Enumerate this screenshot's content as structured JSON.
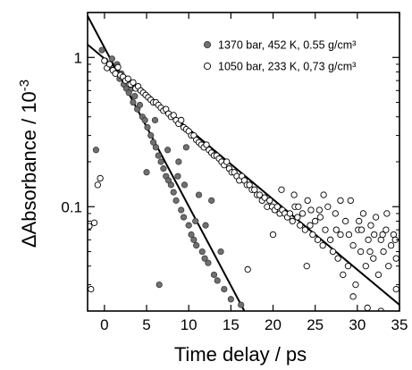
{
  "chart_data": {
    "type": "scatter",
    "xlabel": "Time delay / ps",
    "ylabel_prefix": "ΔAbsorbance / 10",
    "ylabel_exponent": "-3",
    "xlim": [
      -2,
      35
    ],
    "ylim": [
      0.02,
      2
    ],
    "yscale": "log",
    "xticks": [
      0,
      5,
      10,
      15,
      20,
      25,
      30,
      35
    ],
    "yticks": [
      {
        "value": 1,
        "label": "1"
      },
      {
        "value": 0.1,
        "label": "0.1"
      }
    ],
    "minor_yticks": [
      0.03,
      0.04,
      0.05,
      0.06,
      0.07,
      0.08,
      0.09,
      0.2,
      0.3,
      0.4,
      0.5,
      0.6,
      0.7,
      0.8,
      0.9
    ],
    "legend_position": "top-right",
    "series": [
      {
        "name": "1370 bar, 452 K, 0.55 g/cm³",
        "marker": "filled-circle",
        "color": "#707070",
        "points": [
          [
            -1.0,
            0.24
          ],
          [
            -0.3,
            1.12
          ],
          [
            0.1,
            0.95
          ],
          [
            0.5,
            0.86
          ],
          [
            0.9,
            0.98
          ],
          [
            1.2,
            0.8
          ],
          [
            1.5,
            0.9
          ],
          [
            1.8,
            0.72
          ],
          [
            2.0,
            0.78
          ],
          [
            2.3,
            0.66
          ],
          [
            2.6,
            0.62
          ],
          [
            2.9,
            0.58
          ],
          [
            3.2,
            0.62
          ],
          [
            3.4,
            0.5
          ],
          [
            3.6,
            0.55
          ],
          [
            3.9,
            0.45
          ],
          [
            4.2,
            0.48
          ],
          [
            4.5,
            0.4
          ],
          [
            4.8,
            0.38
          ],
          [
            5.1,
            0.34
          ],
          [
            5.5,
            0.3
          ],
          [
            5.8,
            0.27
          ],
          [
            6.1,
            0.25
          ],
          [
            6.4,
            0.22
          ],
          [
            6.7,
            0.2
          ],
          [
            7.0,
            0.18
          ],
          [
            7.3,
            0.16
          ],
          [
            7.6,
            0.15
          ],
          [
            7.9,
            0.14
          ],
          [
            8.2,
            0.125
          ],
          [
            8.5,
            0.11
          ],
          [
            8.8,
            0.2
          ],
          [
            9.1,
            0.095
          ],
          [
            9.4,
            0.085
          ],
          [
            9.7,
            0.25
          ],
          [
            10.0,
            0.075
          ],
          [
            10.3,
            0.065
          ],
          [
            10.6,
            0.06
          ],
          [
            10.9,
            0.055
          ],
          [
            11.2,
            0.12
          ],
          [
            11.6,
            0.05
          ],
          [
            11.9,
            0.045
          ],
          [
            12.3,
            0.042
          ],
          [
            12.7,
            0.11
          ],
          [
            13.0,
            0.035
          ],
          [
            13.4,
            0.032
          ],
          [
            13.8,
            0.05
          ],
          [
            14.2,
            0.028
          ],
          [
            5.0,
            0.17
          ],
          [
            6.0,
            0.38
          ],
          [
            7.5,
            0.24
          ],
          [
            8.7,
            0.16
          ],
          [
            9.5,
            0.14
          ],
          [
            10.8,
            0.08
          ],
          [
            12.0,
            0.075
          ],
          [
            6.5,
            0.03
          ],
          [
            15.0,
            0.024
          ],
          [
            16.2,
            0.022
          ]
        ]
      },
      {
        "name": "1050 bar, 233 K, 0,73 g/cm³",
        "marker": "open-circle",
        "color": "#000000",
        "points": [
          [
            -1.8,
            0.074
          ],
          [
            -1.6,
            0.028
          ],
          [
            -1.2,
            0.078
          ],
          [
            -0.8,
            0.14
          ],
          [
            -0.5,
            0.155
          ],
          [
            0.0,
            0.95
          ],
          [
            0.3,
            0.85
          ],
          [
            0.6,
            0.9
          ],
          [
            1.0,
            0.82
          ],
          [
            1.3,
            0.78
          ],
          [
            1.6,
            0.86
          ],
          [
            1.9,
            0.76
          ],
          [
            2.2,
            0.74
          ],
          [
            2.5,
            0.7
          ],
          [
            2.8,
            0.72
          ],
          [
            3.1,
            0.66
          ],
          [
            3.4,
            0.68
          ],
          [
            3.7,
            0.62
          ],
          [
            4.0,
            0.64
          ],
          [
            4.3,
            0.6
          ],
          [
            4.6,
            0.58
          ],
          [
            4.9,
            0.56
          ],
          [
            5.2,
            0.54
          ],
          [
            5.5,
            0.52
          ],
          [
            5.8,
            0.5
          ],
          [
            6.1,
            0.5
          ],
          [
            6.4,
            0.48
          ],
          [
            6.7,
            0.46
          ],
          [
            7.0,
            0.44
          ],
          [
            7.3,
            0.45
          ],
          [
            7.6,
            0.42
          ],
          [
            7.9,
            0.4
          ],
          [
            8.2,
            0.41
          ],
          [
            8.5,
            0.38
          ],
          [
            8.8,
            0.36
          ],
          [
            9.1,
            0.38
          ],
          [
            9.4,
            0.34
          ],
          [
            9.7,
            0.33
          ],
          [
            10.0,
            0.32
          ],
          [
            10.3,
            0.3
          ],
          [
            10.6,
            0.3
          ],
          [
            10.9,
            0.28
          ],
          [
            11.2,
            0.27
          ],
          [
            11.5,
            0.26
          ],
          [
            11.8,
            0.25
          ],
          [
            12.1,
            0.26
          ],
          [
            12.4,
            0.24
          ],
          [
            12.7,
            0.23
          ],
          [
            13.0,
            0.22
          ],
          [
            13.3,
            0.22
          ],
          [
            13.6,
            0.21
          ],
          [
            13.9,
            0.2
          ],
          [
            14.2,
            0.19
          ],
          [
            14.5,
            0.2
          ],
          [
            14.8,
            0.18
          ],
          [
            15.1,
            0.17
          ],
          [
            15.4,
            0.17
          ],
          [
            15.7,
            0.16
          ],
          [
            16.0,
            0.15
          ],
          [
            16.3,
            0.16
          ],
          [
            16.6,
            0.15
          ],
          [
            16.9,
            0.14
          ],
          [
            17.2,
            0.14
          ],
          [
            17.5,
            0.13
          ],
          [
            17.8,
            0.13
          ],
          [
            18.1,
            0.12
          ],
          [
            18.4,
            0.12
          ],
          [
            18.7,
            0.11
          ],
          [
            19.0,
            0.115
          ],
          [
            19.3,
            0.1
          ],
          [
            19.6,
            0.11
          ],
          [
            19.9,
            0.1
          ],
          [
            20.2,
            0.095
          ],
          [
            20.5,
            0.1
          ],
          [
            20.8,
            0.09
          ],
          [
            21.1,
            0.095
          ],
          [
            21.4,
            0.09
          ],
          [
            21.7,
            0.085
          ],
          [
            22.0,
            0.09
          ],
          [
            22.3,
            0.08
          ],
          [
            22.6,
            0.1
          ],
          [
            22.9,
            0.085
          ],
          [
            23.2,
            0.075
          ],
          [
            23.5,
            0.09
          ],
          [
            23.8,
            0.07
          ],
          [
            24.1,
            0.11
          ],
          [
            24.4,
            0.075
          ],
          [
            24.7,
            0.065
          ],
          [
            25.0,
            0.08
          ],
          [
            25.3,
            0.06
          ],
          [
            25.6,
            0.085
          ],
          [
            25.9,
            0.055
          ],
          [
            26.2,
            0.07
          ],
          [
            26.5,
            0.1
          ],
          [
            26.8,
            0.06
          ],
          [
            27.1,
            0.05
          ],
          [
            27.4,
            0.09
          ],
          [
            27.7,
            0.045
          ],
          [
            28.0,
            0.065
          ],
          [
            28.3,
            0.035
          ],
          [
            28.6,
            0.08
          ],
          [
            28.9,
            0.04
          ],
          [
            29.2,
            0.11
          ],
          [
            29.5,
            0.055
          ],
          [
            29.8,
            0.03
          ],
          [
            30.1,
            0.07
          ],
          [
            30.4,
            0.05
          ],
          [
            30.7,
            0.09
          ],
          [
            31.0,
            0.04
          ],
          [
            31.3,
            0.06
          ],
          [
            31.6,
            0.075
          ],
          [
            31.9,
            0.045
          ],
          [
            32.2,
            0.085
          ],
          [
            32.5,
            0.035
          ],
          [
            32.8,
            0.06
          ],
          [
            33.1,
            0.05
          ],
          [
            33.4,
            0.07
          ],
          [
            33.7,
            0.04
          ],
          [
            34.0,
            0.055
          ],
          [
            34.3,
            0.065
          ],
          [
            34.6,
            0.045
          ],
          [
            20.0,
            0.065
          ],
          [
            22.5,
            0.12
          ],
          [
            24.5,
            0.095
          ],
          [
            26.0,
            0.12
          ],
          [
            27.5,
            0.07
          ],
          [
            29.0,
            0.065
          ],
          [
            30.5,
            0.07
          ],
          [
            31.5,
            0.05
          ],
          [
            33.0,
            0.065
          ],
          [
            34.5,
            0.06
          ],
          [
            17.0,
            0.038
          ],
          [
            21.0,
            0.13
          ],
          [
            23.0,
            0.1
          ],
          [
            24.0,
            0.04
          ],
          [
            25.5,
            0.095
          ],
          [
            28.0,
            0.11
          ],
          [
            30.2,
            0.08
          ],
          [
            32.0,
            0.065
          ],
          [
            33.5,
            0.09
          ],
          [
            31.2,
            0.021
          ],
          [
            29.5,
            0.025
          ],
          [
            32.8,
            0.02
          ],
          [
            34.6,
            0.028
          ]
        ]
      }
    ],
    "fit_lines": [
      {
        "name": "fit-fast",
        "points": [
          [
            -2,
            1.9
          ],
          [
            16.6,
            0.02
          ]
        ]
      },
      {
        "name": "fit-slow",
        "points": [
          [
            -2,
            1.22
          ],
          [
            35,
            0.022
          ]
        ]
      }
    ]
  }
}
